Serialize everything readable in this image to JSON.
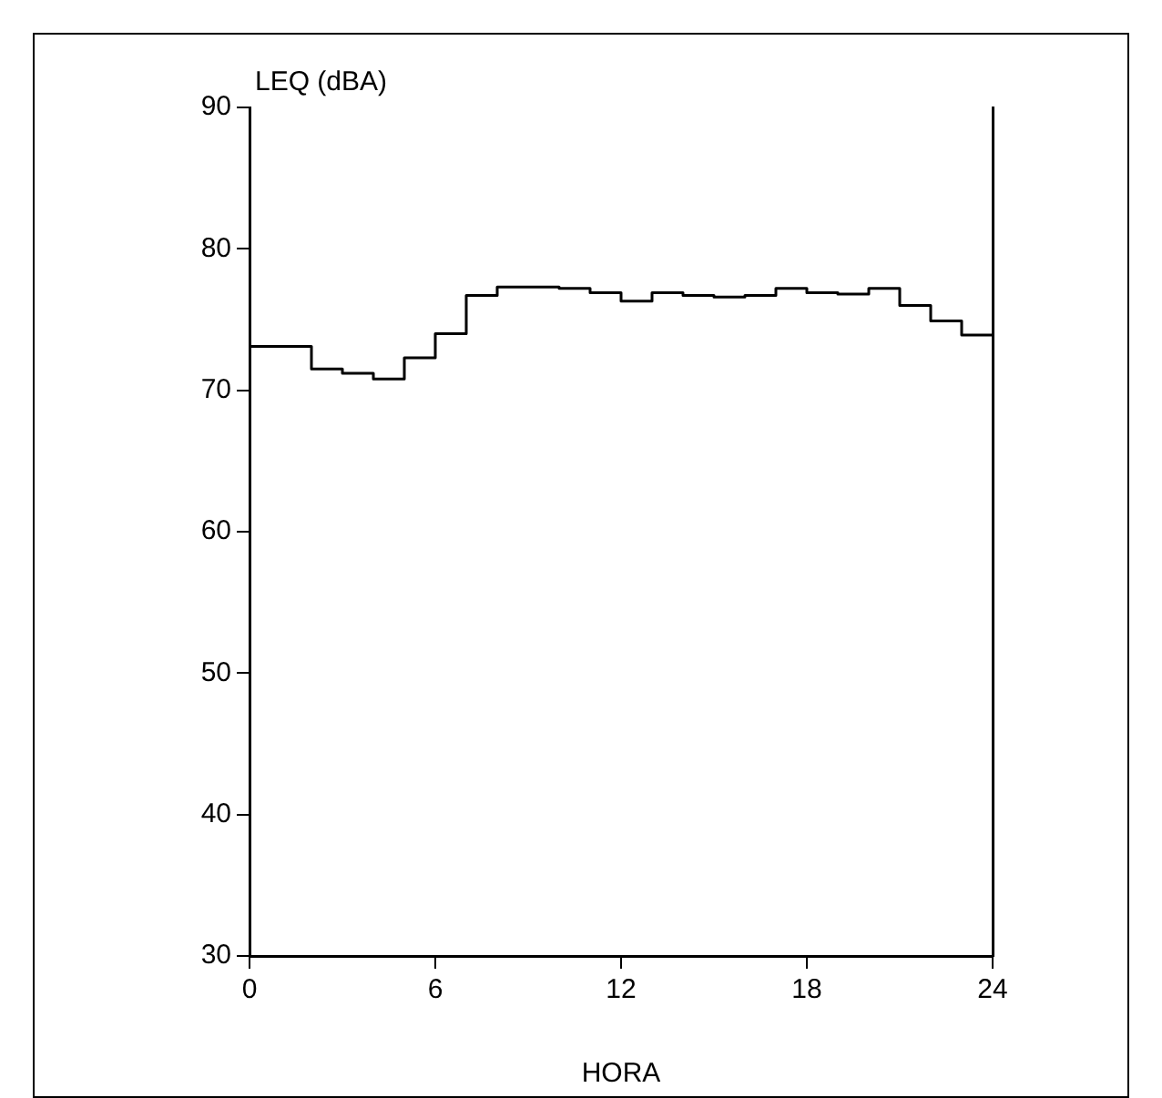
{
  "chart_data": {
    "type": "step",
    "xlabel": "HORA",
    "ylabel": "LEQ (dBA)",
    "x": [
      0,
      1,
      2,
      3,
      4,
      5,
      6,
      7,
      8,
      9,
      10,
      11,
      12,
      13,
      14,
      15,
      16,
      17,
      18,
      19,
      20,
      21,
      22,
      23,
      24
    ],
    "values": [
      73.1,
      73.1,
      71.5,
      71.2,
      70.8,
      72.3,
      74.0,
      76.7,
      77.3,
      77.3,
      77.2,
      76.9,
      76.3,
      76.9,
      76.7,
      76.6,
      76.7,
      77.2,
      76.9,
      76.8,
      77.2,
      76.0,
      74.9,
      73.9,
      73.9
    ],
    "color": "#000000",
    "xlim": [
      0,
      24
    ],
    "xticks": [
      0,
      6,
      12,
      18,
      24
    ],
    "ylim": [
      30,
      90
    ],
    "yticks": [
      30,
      40,
      50,
      60,
      70,
      80,
      90
    ],
    "grid": false,
    "legend": false,
    "marker": "none",
    "line_style": "solid"
  }
}
